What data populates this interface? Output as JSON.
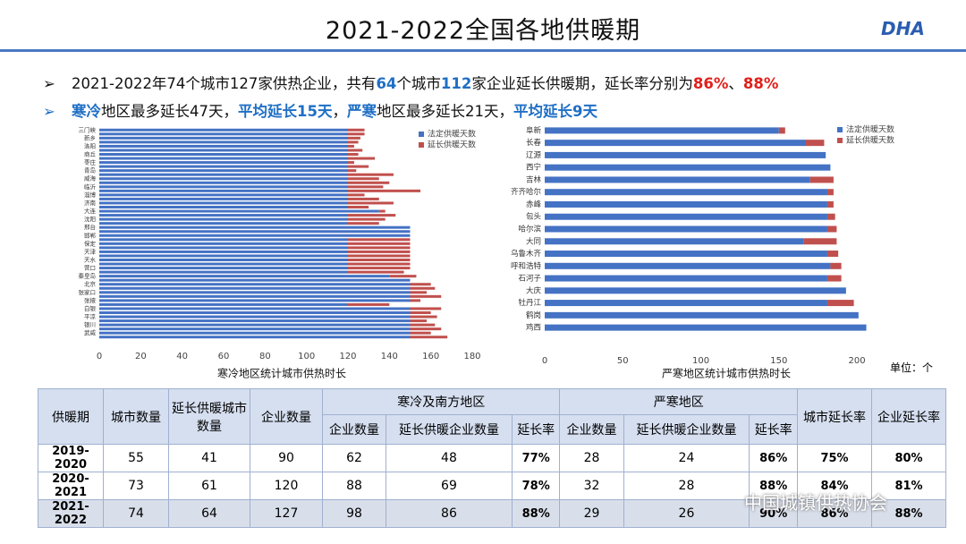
{
  "title": "2021-2022全国各地供暖期",
  "logo": "DHA",
  "bullets": [
    [
      {
        "text": "2021-2022年74个城市127家供热企业，共有",
        "highlight": null
      },
      {
        "text": "64",
        "highlight": "blue"
      },
      {
        "text": "个城市",
        "highlight": null
      },
      {
        "text": "112",
        "highlight": "blue"
      },
      {
        "text": "家企业延长供暖期，延长率分别为",
        "highlight": null
      },
      {
        "text": "86%",
        "highlight": "red"
      },
      {
        "text": "、",
        "highlight": null
      },
      {
        "text": "88%",
        "highlight": "red"
      }
    ],
    [
      {
        "text": "寒冷",
        "highlight": "blue"
      },
      {
        "text": "地区最多延长47天，",
        "highlight": null
      },
      {
        "text": "平均延长15天",
        "highlight": "blue"
      },
      {
        "text": "，",
        "highlight": null
      },
      {
        "text": "严寒",
        "highlight": "blue"
      },
      {
        "text": "地区最多延长21天，",
        "highlight": null
      },
      {
        "text": "平均延长9天",
        "highlight": "blue"
      }
    ]
  ],
  "unit": "单位：个",
  "watermark": "中国城镇供热协会",
  "chart_data": [
    {
      "type": "bar",
      "orientation": "horizontal",
      "stacked": true,
      "legend": "upper right",
      "x_label": "寒冷地区统计城市供热时长",
      "categories": [
        "三门峡",
        null,
        "新乡",
        null,
        "洛阳",
        null,
        "商丘",
        null,
        "枣庄",
        null,
        "青岛",
        null,
        "威海",
        null,
        "临沂",
        null,
        "淄博",
        null,
        "济南",
        null,
        "大连",
        null,
        "沈阳",
        null,
        "邢台",
        null,
        "邯郸",
        null,
        "保定",
        null,
        "天津",
        null,
        "天水",
        null,
        "营口",
        null,
        "秦皇岛",
        null,
        "北京",
        null,
        "张家口",
        null,
        "张掖",
        null,
        "白银",
        null,
        "平凉",
        null,
        "银川",
        null,
        "武威",
        null
      ],
      "series": [
        {
          "name": "法定供暖天数",
          "color": "#4472c4",
          "values": [
            120,
            120,
            120,
            120,
            120,
            120,
            120,
            120,
            120,
            120,
            120,
            120,
            120,
            120,
            120,
            120,
            120,
            120,
            120,
            120,
            135,
            120,
            120,
            120,
            150,
            150,
            150,
            120,
            120,
            120,
            120,
            120,
            120,
            120,
            120,
            120,
            140,
            150,
            150,
            150,
            150,
            150,
            150,
            120,
            150,
            150,
            150,
            150,
            150,
            150,
            150,
            150
          ]
        },
        {
          "name": "延长供暖天数",
          "color": "#c0504d",
          "values": [
            8,
            8,
            6,
            5,
            3,
            7,
            5,
            13,
            3,
            10,
            4,
            22,
            15,
            20,
            17,
            35,
            8,
            15,
            22,
            10,
            3,
            23,
            18,
            15,
            0,
            0,
            0,
            30,
            30,
            30,
            30,
            30,
            30,
            30,
            30,
            27,
            13,
            0,
            10,
            12,
            8,
            15,
            5,
            20,
            15,
            10,
            13,
            8,
            12,
            15,
            10,
            18
          ]
        }
      ],
      "xlim": [
        0,
        180
      ],
      "xticks": [
        0,
        20,
        40,
        60,
        80,
        100,
        120,
        140,
        160,
        180
      ]
    },
    {
      "type": "bar",
      "orientation": "horizontal",
      "stacked": true,
      "legend": "upper right",
      "x_label": "严寒地区统计城市供热时长",
      "categories": [
        "阜新",
        "长春",
        "辽源",
        "西宁",
        "吉林",
        "齐齐哈尔",
        "赤峰",
        "包头",
        "哈尔滨",
        "大同",
        "乌鲁木齐",
        "呼和浩特",
        "石河子",
        "大庆",
        "牡丹江",
        "鹤岗",
        "鸡西"
      ],
      "series": [
        {
          "name": "法定供暖天数",
          "color": "#4472c4",
          "values": [
            150,
            167,
            180,
            183,
            170,
            181,
            181,
            181,
            181,
            166,
            181,
            183,
            181,
            193,
            181,
            201,
            206
          ]
        },
        {
          "name": "延长供暖天数",
          "color": "#c0504d",
          "values": [
            4,
            12,
            0,
            0,
            15,
            4,
            4,
            5,
            6,
            21,
            7,
            7,
            9,
            0,
            17,
            0,
            0
          ]
        }
      ],
      "xlim": [
        0,
        220
      ],
      "xticks": [
        0,
        50,
        100,
        150,
        200
      ]
    }
  ],
  "table": {
    "header_top": [
      "供暖期",
      "城市数量",
      "延长供暖城市数量",
      "企业数量",
      "寒冷及南方地区",
      "严寒地区",
      "城市延长率",
      "企业延长率"
    ],
    "header_sub": [
      "企业数量",
      "延长供暖企业数量",
      "延长率",
      "企业数量",
      "延长供暖企业数量",
      "延长率"
    ],
    "rows": [
      [
        "2019-2020",
        "55",
        "41",
        "90",
        "62",
        "48",
        "77%",
        "28",
        "24",
        "86%",
        "75%",
        "80%"
      ],
      [
        "2020-2021",
        "73",
        "61",
        "120",
        "88",
        "69",
        "78%",
        "32",
        "28",
        "88%",
        "84%",
        "81%"
      ],
      [
        "2021-2022",
        "74",
        "64",
        "127",
        "98",
        "86",
        "88%",
        "29",
        "26",
        "90%",
        "86%",
        "88%"
      ]
    ]
  }
}
